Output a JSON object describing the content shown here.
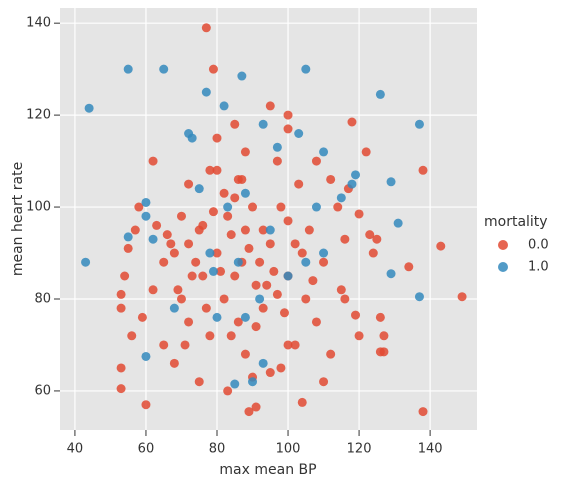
{
  "chart_data": {
    "type": "scatter",
    "x_label": "max mean BP",
    "y_label": "mean heart rate",
    "legend_title": "mortality",
    "legend": "right",
    "grid": true,
    "xlim": [
      35.8,
      153.2
    ],
    "ylim": [
      51.5,
      143.3
    ],
    "xticks": [
      40,
      60,
      80,
      100,
      120,
      140
    ],
    "yticks": [
      60,
      80,
      100,
      120,
      140
    ],
    "series": [
      {
        "name": "0.0",
        "color": "#e24a33",
        "x": [
          77,
          79,
          138,
          149,
          143,
          53,
          60,
          89,
          91,
          104,
          118,
          122,
          126,
          126,
          127,
          138,
          134,
          117,
          120,
          123,
          124,
          125,
          127,
          120,
          119,
          116,
          53,
          53,
          53,
          54,
          55,
          56,
          57,
          58,
          59,
          62,
          72,
          70,
          100,
          95,
          108,
          112,
          114,
          116,
          110,
          100,
          98,
          83,
          75,
          68,
          65,
          105,
          88,
          85,
          80,
          90,
          93,
          78,
          72,
          82,
          95,
          100,
          86,
          92,
          76,
          70,
          65,
          62,
          103,
          97,
          80,
          88,
          106,
          108,
          112,
          72,
          79,
          84,
          91,
          96,
          100,
          88,
          82,
          75,
          67,
          98,
          86,
          78,
          90,
          110,
          115,
          85,
          100,
          95,
          102,
          87,
          81,
          93,
          73,
          77,
          84,
          74,
          69,
          66,
          71,
          83,
          89,
          94,
          99,
          104,
          107,
          85,
          80,
          76,
          91,
          97,
          102,
          68,
          63,
          87
        ],
        "values": [
          139,
          130,
          55.5,
          80.5,
          91.5,
          60.5,
          57,
          55.5,
          56.5,
          57.5,
          118.5,
          112,
          76,
          68.5,
          68.5,
          108,
          87,
          104,
          98.5,
          94,
          90,
          93,
          72,
          72,
          76.5,
          80,
          78,
          81,
          65,
          85,
          91,
          72,
          95,
          100,
          76,
          110,
          105,
          80,
          120,
          122,
          110,
          106,
          100,
          93,
          88,
          70,
          65,
          60,
          62,
          66,
          70,
          80,
          95,
          85,
          90,
          100,
          78,
          72,
          92,
          103,
          92,
          97,
          75,
          88,
          85,
          98,
          88,
          82,
          105,
          110,
          115,
          112,
          95,
          75,
          68,
          75,
          99,
          94,
          83,
          86,
          85,
          68,
          80,
          95,
          92,
          100,
          106,
          108,
          63,
          62,
          82,
          118,
          117,
          64,
          92,
          88,
          86,
          95,
          85,
          78,
          72,
          88,
          82,
          94,
          70,
          98,
          91,
          83,
          77,
          90,
          84,
          102,
          108,
          96,
          74,
          81,
          70,
          90,
          96,
          106
        ]
      },
      {
        "name": "1.0",
        "color": "#348abd",
        "x": [
          44,
          55,
          65,
          77,
          87,
          105,
          126,
          137,
          137,
          129,
          131,
          129,
          119,
          118,
          115,
          108,
          110,
          103,
          93,
          82,
          72,
          73,
          60,
          60,
          55,
          43,
          62,
          68,
          80,
          88,
          90,
          85,
          93,
          60,
          88,
          95,
          78,
          100,
          92,
          75,
          83,
          97,
          110,
          105,
          86,
          79
        ],
        "values": [
          121.5,
          130,
          130,
          125,
          128.5,
          130,
          124.5,
          118,
          80.5,
          85.5,
          96.5,
          105.5,
          107,
          105,
          102,
          100,
          112,
          116,
          118,
          122,
          116,
          115,
          101,
          98,
          93.5,
          88,
          93,
          78,
          76,
          76,
          62,
          61.5,
          66,
          67.5,
          103,
          95,
          90,
          85,
          80,
          104,
          100,
          113,
          90,
          88,
          88,
          86
        ]
      }
    ]
  }
}
